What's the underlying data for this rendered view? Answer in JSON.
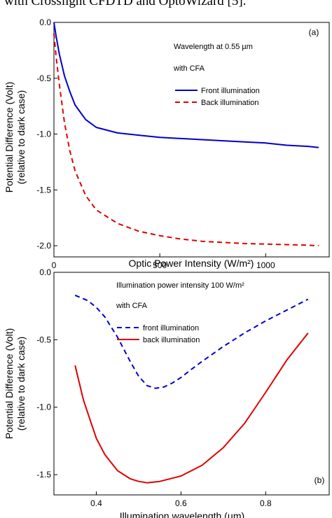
{
  "page_header": "with Crosslight CFDTD and OptoWizard [5].",
  "chart_data": [
    {
      "type": "line",
      "panel_label": "(a)",
      "annotations": [
        "Wavelength at 0.55 µm",
        "with CFA"
      ],
      "xlabel": "Optic Power Intensity (W/m²)",
      "ylabel_line1": "Potential Difference (Volt)",
      "ylabel_line2": "(relative to dark case)",
      "xlim": [
        0,
        1300
      ],
      "ylim": [
        -2.1,
        0.0
      ],
      "x_ticks": [
        0,
        500,
        1000
      ],
      "x_tick_labels": [
        "0",
        "500",
        "1000"
      ],
      "y_ticks": [
        0.0,
        -0.5,
        -1.0,
        -1.5,
        -2.0
      ],
      "y_tick_labels": [
        "0.0",
        "-0.5",
        "-1.0",
        "-1.5",
        "-2.0"
      ],
      "grid": false,
      "legend_position": "top-right",
      "series": [
        {
          "name": "Front illumination",
          "color": "#0000cc",
          "dash": "solid",
          "x": [
            0,
            10,
            25,
            50,
            75,
            100,
            150,
            200,
            300,
            400,
            500,
            600,
            700,
            800,
            900,
            1000,
            1100,
            1200,
            1250
          ],
          "y": [
            0.0,
            -0.12,
            -0.28,
            -0.48,
            -0.62,
            -0.74,
            -0.87,
            -0.94,
            -0.99,
            -1.01,
            -1.03,
            -1.04,
            -1.05,
            -1.06,
            -1.07,
            -1.08,
            -1.1,
            -1.11,
            -1.12
          ]
        },
        {
          "name": "Back illumination",
          "color": "#dd0000",
          "dash": "dashed",
          "x": [
            0,
            10,
            25,
            50,
            75,
            100,
            150,
            200,
            300,
            400,
            500,
            600,
            700,
            800,
            900,
            1000,
            1100,
            1200,
            1250
          ],
          "y": [
            -0.1,
            -0.3,
            -0.55,
            -0.9,
            -1.15,
            -1.33,
            -1.55,
            -1.68,
            -1.8,
            -1.87,
            -1.91,
            -1.94,
            -1.96,
            -1.97,
            -1.98,
            -1.985,
            -1.99,
            -1.995,
            -2.0
          ]
        }
      ]
    },
    {
      "type": "line",
      "panel_label": "(b)",
      "annotations": [
        "Illumination power intensity 100 W/m²",
        "with CFA"
      ],
      "xlabel": "Illumination wavelength (µm)",
      "ylabel_line1": "Potential Difference (Volt)",
      "ylabel_line2": "(relative to dark case)",
      "xlim": [
        0.3,
        0.95
      ],
      "ylim": [
        -1.65,
        0.0
      ],
      "x_ticks": [
        0.4,
        0.6,
        0.8
      ],
      "x_tick_labels": [
        "0.4",
        "0.6",
        "0.8"
      ],
      "y_ticks": [
        0.0,
        -0.5,
        -1.0,
        -1.5
      ],
      "y_tick_labels": [
        "0.0",
        "-0.5",
        "-1.0",
        "-1.5"
      ],
      "grid": false,
      "legend_position": "top-right",
      "series": [
        {
          "name": "front illumination",
          "color": "#0000cc",
          "dash": "dashed",
          "x": [
            0.35,
            0.38,
            0.4,
            0.42,
            0.45,
            0.48,
            0.5,
            0.52,
            0.54,
            0.56,
            0.58,
            0.6,
            0.62,
            0.65,
            0.7,
            0.75,
            0.8,
            0.85,
            0.9
          ],
          "y": [
            -0.17,
            -0.21,
            -0.26,
            -0.33,
            -0.48,
            -0.66,
            -0.77,
            -0.84,
            -0.86,
            -0.85,
            -0.82,
            -0.78,
            -0.73,
            -0.66,
            -0.55,
            -0.45,
            -0.36,
            -0.28,
            -0.2
          ]
        },
        {
          "name": "back illumination",
          "color": "#dd0000",
          "dash": "solid",
          "x": [
            0.35,
            0.37,
            0.4,
            0.42,
            0.45,
            0.48,
            0.5,
            0.52,
            0.55,
            0.6,
            0.65,
            0.7,
            0.75,
            0.8,
            0.85,
            0.9
          ],
          "y": [
            -0.69,
            -0.95,
            -1.23,
            -1.35,
            -1.47,
            -1.53,
            -1.55,
            -1.56,
            -1.55,
            -1.51,
            -1.43,
            -1.3,
            -1.12,
            -0.89,
            -0.65,
            -0.45
          ]
        }
      ]
    }
  ]
}
